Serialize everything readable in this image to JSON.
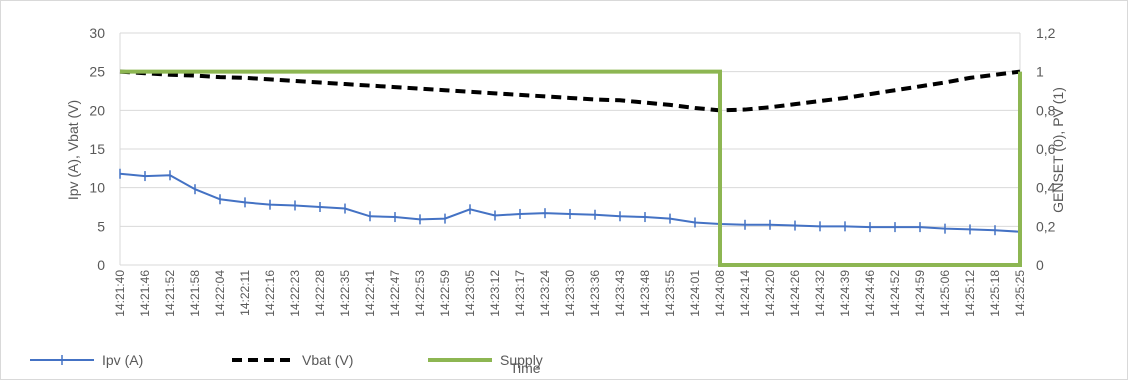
{
  "chart_data": {
    "type": "line",
    "xlabel": "Time",
    "ylabel": "Ipv (A), Vbat (V)",
    "y2label": "GENSET (0), PV (1)",
    "ylim": [
      0,
      30
    ],
    "y2lim": [
      0,
      1.2
    ],
    "yticks": [
      "0",
      "5",
      "10",
      "15",
      "20",
      "25",
      "30"
    ],
    "y2ticks": [
      "0",
      "0,2",
      "0,4",
      "0,6",
      "0,8",
      "1",
      "1,2"
    ],
    "grid": true,
    "legend": "bottom-left",
    "x_categories": [
      "14:21:40",
      "14:21:46",
      "14:21:52",
      "14:21:58",
      "14:22:04",
      "14:22:11",
      "14:22:16",
      "14:22:23",
      "14:22:28",
      "14:22:35",
      "14:22:41",
      "14:22:47",
      "14:22:53",
      "14:22:59",
      "14:23:05",
      "14:23:12",
      "14:23:17",
      "14:23:24",
      "14:23:30",
      "14:23:36",
      "14:23:43",
      "14:23:48",
      "14:23:55",
      "14:24:01",
      "14:24:08",
      "14:24:14",
      "14:24:20",
      "14:24:26",
      "14:24:32",
      "14:24:39",
      "14:24:46",
      "14:24:52",
      "14:24:59",
      "14:25:06",
      "14:25:12",
      "14:25:18",
      "14:25:25"
    ],
    "series": [
      {
        "name": "Ipv (A)",
        "axis": "left",
        "color": "#4472C4",
        "style": "line-markers",
        "values": [
          11.8,
          11.5,
          11.6,
          9.8,
          8.5,
          8.1,
          7.8,
          7.7,
          7.5,
          7.3,
          6.3,
          6.2,
          5.9,
          6.0,
          7.2,
          6.4,
          6.6,
          6.7,
          6.6,
          6.5,
          6.3,
          6.2,
          6.0,
          5.5,
          5.3,
          5.2,
          5.2,
          5.1,
          5.0,
          5.0,
          4.9,
          4.9,
          4.9,
          4.7,
          4.6,
          4.5,
          4.3
        ]
      },
      {
        "name": "Vbat (V)",
        "axis": "left",
        "color": "#000000",
        "style": "dashed",
        "values": [
          25.0,
          24.8,
          24.6,
          24.5,
          24.3,
          24.2,
          24.0,
          23.8,
          23.6,
          23.4,
          23.2,
          23.0,
          22.8,
          22.6,
          22.4,
          22.2,
          22.0,
          21.8,
          21.6,
          21.4,
          21.3,
          21.0,
          20.7,
          20.3,
          20.0,
          20.1,
          20.4,
          20.8,
          21.2,
          21.6,
          22.1,
          22.6,
          23.1,
          23.6,
          24.2,
          24.6,
          25.0
        ]
      },
      {
        "name": "Supply",
        "axis": "right",
        "color": "#8DB652",
        "style": "step",
        "values": [
          1,
          1,
          1,
          1,
          1,
          1,
          1,
          1,
          1,
          1,
          1,
          1,
          1,
          1,
          1,
          1,
          1,
          1,
          1,
          1,
          1,
          1,
          1,
          1,
          0,
          0,
          0,
          0,
          0,
          0,
          0,
          0,
          0,
          0,
          0,
          0,
          1
        ]
      }
    ]
  }
}
